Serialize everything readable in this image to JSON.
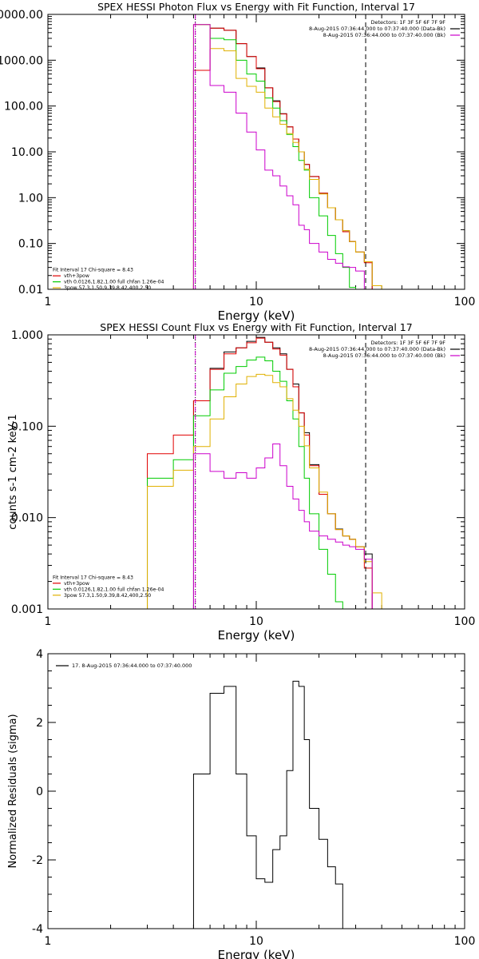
{
  "chart_data": [
    {
      "type": "line",
      "title": "SPEX HESSI Photon Flux vs Energy with Fit Function, Interval 17",
      "xlabel": "Energy (keV)",
      "ylabel": "",
      "xscale": "log",
      "yscale": "log",
      "xlim": [
        1,
        100
      ],
      "ylim": [
        0.01,
        10000
      ],
      "xticks": [
        {
          "v": 1,
          "label": "1"
        },
        {
          "v": 10,
          "label": "10"
        },
        {
          "v": 100,
          "label": "100"
        }
      ],
      "yticks": [
        {
          "v": 0.01,
          "label": "0.01"
        },
        {
          "v": 0.1,
          "label": "0.10"
        },
        {
          "v": 1,
          "label": "1.00"
        },
        {
          "v": 10,
          "label": "10.00"
        },
        {
          "v": 100,
          "label": "100.00"
        },
        {
          "v": 1000,
          "label": "1000.00"
        },
        {
          "v": 10000,
          "label": "10000.00"
        }
      ],
      "vlines": [
        {
          "x": 5.1,
          "style": "dotted",
          "color": "#000000"
        },
        {
          "x": 5.1,
          "style": "dashed",
          "color": "#cc00cc"
        },
        {
          "x": 33.5,
          "style": "dashed",
          "color": "#000000"
        }
      ],
      "top_right_text": [
        "Detectors: 1F 3F 5F 6F 7F 9F",
        "8-Aug-2015 07:36:44.000 to 07:37:40.000 (Data-Bk)",
        "8-Aug-2015 07:36:44.000 to 07:37:40.000 (Bk)"
      ],
      "top_right_colors": [
        "#000000",
        "#000000",
        "#cc00cc"
      ],
      "legend_lines": [
        {
          "text": "Fit Interval 17   Chi-square = 8.43",
          "color": "#000000"
        },
        {
          "text": "vth+3pow",
          "color": "#e00000"
        },
        {
          "text": "vth 0.0126,1.82,1.00  full chfan 1.26e-04",
          "color": "#00cc00"
        },
        {
          "text": "3pow 57.3,1.50,9.39,8.42,400,2.50",
          "color": "#e0b000"
        }
      ],
      "legend_y_frac": 0.935,
      "edges": [
        3.0,
        4.0,
        5.0,
        6.0,
        7.0,
        8.0,
        9.0,
        10.0,
        11.0,
        12.0,
        13.0,
        14.0,
        15.0,
        16.0,
        17.0,
        18.0,
        20.0,
        22.0,
        24.0,
        26.0,
        28.0,
        30.0,
        33.0,
        36.0,
        40.0
      ],
      "series": [
        {
          "color": "#000000",
          "values": [
            null,
            null,
            600,
            5000,
            4500,
            2300,
            1200,
            680,
            250,
            130,
            68,
            35,
            19,
            10,
            5.3,
            2.9,
            1.25,
            0.6,
            0.33,
            0.19,
            0.11,
            0.065,
            0.04,
            null
          ]
        },
        {
          "color": "#e00000",
          "values": [
            null,
            null,
            600,
            5000,
            4500,
            2300,
            1200,
            650,
            250,
            125,
            67,
            35,
            19,
            10,
            5.3,
            2.9,
            1.25,
            0.6,
            0.33,
            0.18,
            0.11,
            0.065,
            0.038,
            null
          ]
        },
        {
          "color": "#00cc00",
          "values": [
            null,
            null,
            6000,
            3000,
            2800,
            1000,
            500,
            350,
            150,
            90,
            48,
            24,
            13,
            6.5,
            4.0,
            1.0,
            0.4,
            0.15,
            0.06,
            0.03,
            0.011,
            null,
            null,
            null
          ]
        },
        {
          "color": "#e0b000",
          "values": [
            null,
            null,
            6000,
            1800,
            1600,
            400,
            270,
            200,
            90,
            58,
            40,
            25,
            16,
            10,
            4.2,
            2.5,
            1.2,
            0.6,
            0.33,
            0.19,
            0.11,
            0.065,
            0.04,
            0.012
          ]
        },
        {
          "color": "#cc00cc",
          "values": [
            null,
            null,
            6000,
            280,
            200,
            70,
            27,
            11,
            4.0,
            3.0,
            1.8,
            1.1,
            0.7,
            0.25,
            0.2,
            0.1,
            0.065,
            0.045,
            0.037,
            0.031,
            0.03,
            0.025,
            null,
            null
          ]
        }
      ]
    },
    {
      "type": "line",
      "title": "SPEX HESSI Count Flux vs Energy with Fit Function, Interval 17",
      "xlabel": "Energy (keV)",
      "ylabel": "counts s-1 cm-2 keV-1",
      "xscale": "log",
      "yscale": "log",
      "xlim": [
        1,
        100
      ],
      "ylim": [
        0.001,
        1.0
      ],
      "xticks": [
        {
          "v": 1,
          "label": "1"
        },
        {
          "v": 10,
          "label": "10"
        },
        {
          "v": 100,
          "label": "100"
        }
      ],
      "yticks": [
        {
          "v": 0.001,
          "label": "0.001"
        },
        {
          "v": 0.01,
          "label": "0.010"
        },
        {
          "v": 0.1,
          "label": "0.100"
        },
        {
          "v": 1.0,
          "label": "1.000"
        }
      ],
      "vlines": [
        {
          "x": 5.1,
          "style": "dotted",
          "color": "#000000"
        },
        {
          "x": 5.1,
          "style": "dashed",
          "color": "#cc00cc"
        },
        {
          "x": 33.5,
          "style": "dashed",
          "color": "#000000"
        }
      ],
      "top_right_text": [
        "Detectors: 1F 3F 5F 6F 7F 9F",
        "8-Aug-2015 07:36:44.000 to 07:37:40.000 (Data-Bk)",
        "8-Aug-2015 07:36:44.000 to 07:37:40.000 (Bk)"
      ],
      "top_right_colors": [
        "#000000",
        "#000000",
        "#cc00cc"
      ],
      "legend_lines": [
        {
          "text": "Fit Interval 17   Chi-square = 8.43",
          "color": "#000000"
        },
        {
          "text": "vth+3pow",
          "color": "#e00000"
        },
        {
          "text": "vth 0.0126,1.82,1.00  full chfan 1.26e-04",
          "color": "#00cc00"
        },
        {
          "text": "3pow 57.3,1.50,9.39,8.42,400,2.50",
          "color": "#e0b000"
        }
      ],
      "legend_y_frac": 0.89,
      "edges": [
        3.0,
        4.0,
        5.0,
        6.0,
        7.0,
        8.0,
        9.0,
        10.0,
        11.0,
        12.0,
        13.0,
        14.0,
        15.0,
        16.0,
        17.0,
        18.0,
        20.0,
        22.0,
        24.0,
        26.0,
        28.0,
        30.0,
        33.0,
        36.0,
        40.0
      ],
      "series": [
        {
          "color": "#000000",
          "values": [
            null,
            null,
            0.19,
            0.43,
            0.65,
            0.72,
            0.85,
            0.94,
            0.83,
            0.72,
            0.62,
            0.42,
            0.29,
            0.14,
            0.085,
            0.038,
            0.018,
            0.011,
            0.0075,
            0.0063,
            0.0058,
            0.0048,
            0.004,
            null
          ]
        },
        {
          "color": "#e00000",
          "values": [
            0.05,
            0.08,
            0.19,
            0.42,
            0.62,
            0.72,
            0.82,
            0.92,
            0.83,
            0.7,
            0.6,
            0.42,
            0.27,
            0.14,
            0.08,
            0.037,
            0.018,
            0.011,
            0.0074,
            0.0063,
            0.0058,
            0.0048,
            0.0028,
            null
          ]
        },
        {
          "color": "#00cc00",
          "values": [
            0.027,
            0.043,
            0.13,
            0.25,
            0.38,
            0.45,
            0.53,
            0.57,
            0.52,
            0.4,
            0.31,
            0.19,
            0.12,
            0.06,
            0.027,
            0.011,
            0.0045,
            0.0024,
            0.0012,
            0.0009,
            null,
            null,
            null,
            null
          ]
        },
        {
          "color": "#e0b000",
          "values": [
            0.022,
            0.033,
            0.06,
            0.12,
            0.21,
            0.29,
            0.35,
            0.37,
            0.36,
            0.3,
            0.27,
            0.2,
            0.15,
            0.1,
            0.061,
            0.035,
            0.019,
            0.011,
            0.0074,
            0.0063,
            0.0058,
            0.0048,
            0.0033,
            0.0015
          ]
        },
        {
          "color": "#cc00cc",
          "values": [
            null,
            null,
            0.05,
            0.032,
            0.027,
            0.031,
            0.027,
            0.035,
            0.045,
            0.064,
            0.037,
            0.022,
            0.016,
            0.012,
            0.009,
            0.0071,
            0.0063,
            0.0058,
            0.0054,
            0.005,
            0.0048,
            0.0045,
            0.0035,
            null
          ]
        }
      ]
    },
    {
      "type": "line",
      "title": "",
      "xlabel": "Energy (keV)",
      "ylabel": "Normalized Residuals (sigma)",
      "xscale": "log",
      "yscale": "linear",
      "xlim": [
        1,
        100
      ],
      "ylim": [
        -4,
        4
      ],
      "xticks": [
        {
          "v": 1,
          "label": "1"
        },
        {
          "v": 10,
          "label": "10"
        },
        {
          "v": 100,
          "label": "100"
        }
      ],
      "yticks": [
        {
          "v": -4,
          "label": "-4"
        },
        {
          "v": -2,
          "label": "-2"
        },
        {
          "v": 0,
          "label": "0"
        },
        {
          "v": 2,
          "label": "2"
        },
        {
          "v": 4,
          "label": "4"
        }
      ],
      "vlines": [],
      "top_right_text": [],
      "top_right_colors": [],
      "legend_lines": [],
      "inset_legend": {
        "text": "17.  8-Aug-2015 07:36:44.000 to 07:37:40.000",
        "color": "#000000"
      },
      "edges": [
        5.0,
        6.0,
        7.0,
        8.0,
        9.0,
        10.0,
        11.0,
        12.0,
        13.0,
        14.0,
        15.0,
        16.0,
        17.0,
        18.0,
        20.0,
        22.0,
        24.0,
        26.0,
        28.0,
        30.0,
        33.0
      ],
      "series": [
        {
          "color": "#000000",
          "values": [
            0.5,
            2.85,
            3.05,
            0.5,
            -1.3,
            -2.55,
            -2.65,
            -1.7,
            -1.3,
            0.6,
            3.2,
            3.05,
            1.5,
            -0.5,
            -1.4,
            -2.2,
            -2.7,
            -4.0,
            -4.0,
            -4.0
          ]
        }
      ]
    }
  ]
}
